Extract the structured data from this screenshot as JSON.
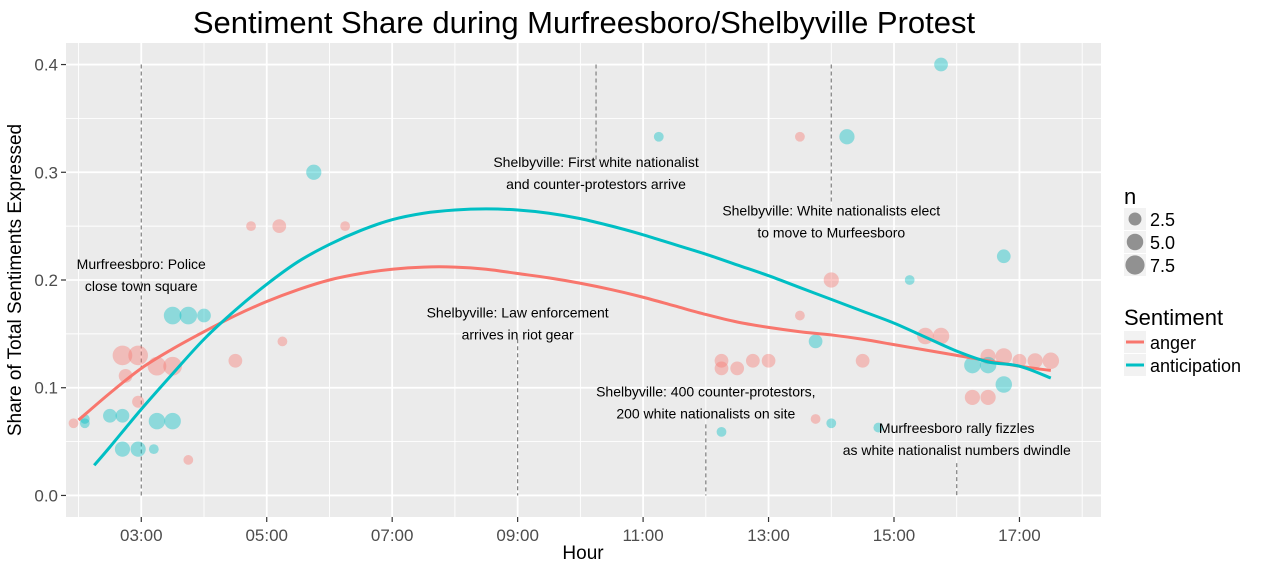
{
  "chart_data": {
    "type": "scatter",
    "title": "Sentiment Share during Murfreesboro/Shelbyville Protest",
    "xlabel": "Hour",
    "ylabel": "Share of Total Sentiments Expressed",
    "xlim": [
      1.8,
      18.3
    ],
    "ylim": [
      -0.02,
      0.42
    ],
    "x_ticks": [
      3,
      5,
      7,
      9,
      11,
      13,
      15,
      17
    ],
    "x_tick_labels": [
      "03:00",
      "05:00",
      "07:00",
      "09:00",
      "11:00",
      "13:00",
      "15:00",
      "17:00"
    ],
    "y_ticks": [
      0.0,
      0.1,
      0.2,
      0.3,
      0.4
    ],
    "y_tick_labels": [
      "0.0",
      "0.1",
      "0.2",
      "0.3",
      "0.4"
    ],
    "grid": true,
    "colors": {
      "anger": "#F8766D",
      "anticipation": "#00BFC4",
      "panel": "#EBEBEB",
      "grid": "#FFFFFF",
      "event_line": "#7f7f7f"
    },
    "size_legend": {
      "title": "n",
      "entries": [
        {
          "label": "2.5",
          "n": 2.5
        },
        {
          "label": "5.0",
          "n": 5.0
        },
        {
          "label": "7.5",
          "n": 7.5
        }
      ]
    },
    "color_legend": {
      "title": "Sentiment",
      "entries": [
        {
          "label": "anger",
          "series": "anger"
        },
        {
          "label": "anticipation",
          "series": "anticipation"
        }
      ]
    },
    "legend_position": "right",
    "series": [
      {
        "name": "anger",
        "points": [
          {
            "x": 1.92,
            "y": 0.067,
            "n": 1
          },
          {
            "x": 2.7,
            "y": 0.13,
            "n": 8
          },
          {
            "x": 2.95,
            "y": 0.13,
            "n": 8
          },
          {
            "x": 2.75,
            "y": 0.111,
            "n": 3
          },
          {
            "x": 2.95,
            "y": 0.087,
            "n": 2
          },
          {
            "x": 3.25,
            "y": 0.12,
            "n": 7
          },
          {
            "x": 3.5,
            "y": 0.12,
            "n": 7
          },
          {
            "x": 3.75,
            "y": 0.033,
            "n": 1
          },
          {
            "x": 4.5,
            "y": 0.125,
            "n": 3
          },
          {
            "x": 4.75,
            "y": 0.25,
            "n": 1
          },
          {
            "x": 5.2,
            "y": 0.25,
            "n": 3
          },
          {
            "x": 5.25,
            "y": 0.143,
            "n": 1
          },
          {
            "x": 6.25,
            "y": 0.25,
            "n": 1
          },
          {
            "x": 12.25,
            "y": 0.125,
            "n": 3
          },
          {
            "x": 12.25,
            "y": 0.118,
            "n": 3
          },
          {
            "x": 12.5,
            "y": 0.118,
            "n": 3
          },
          {
            "x": 12.75,
            "y": 0.125,
            "n": 3
          },
          {
            "x": 13.0,
            "y": 0.125,
            "n": 3
          },
          {
            "x": 13.5,
            "y": 0.333,
            "n": 1
          },
          {
            "x": 13.5,
            "y": 0.167,
            "n": 1
          },
          {
            "x": 13.75,
            "y": 0.071,
            "n": 1
          },
          {
            "x": 14.0,
            "y": 0.2,
            "n": 4
          },
          {
            "x": 14.5,
            "y": 0.125,
            "n": 3
          },
          {
            "x": 15.5,
            "y": 0.148,
            "n": 5
          },
          {
            "x": 15.75,
            "y": 0.148,
            "n": 5
          },
          {
            "x": 16.25,
            "y": 0.091,
            "n": 4
          },
          {
            "x": 16.5,
            "y": 0.091,
            "n": 4
          },
          {
            "x": 16.5,
            "y": 0.129,
            "n": 4
          },
          {
            "x": 16.75,
            "y": 0.129,
            "n": 5
          },
          {
            "x": 17.0,
            "y": 0.125,
            "n": 3
          },
          {
            "x": 17.25,
            "y": 0.125,
            "n": 4
          },
          {
            "x": 17.5,
            "y": 0.125,
            "n": 5
          }
        ],
        "smooth": [
          {
            "x": 2.0,
            "y": 0.07
          },
          {
            "x": 2.5,
            "y": 0.095
          },
          {
            "x": 3.0,
            "y": 0.118
          },
          {
            "x": 3.5,
            "y": 0.136
          },
          {
            "x": 4.0,
            "y": 0.152
          },
          {
            "x": 4.5,
            "y": 0.167
          },
          {
            "x": 5.0,
            "y": 0.18
          },
          {
            "x": 5.5,
            "y": 0.191
          },
          {
            "x": 6.0,
            "y": 0.2
          },
          {
            "x": 6.5,
            "y": 0.206
          },
          {
            "x": 7.0,
            "y": 0.21
          },
          {
            "x": 7.5,
            "y": 0.212
          },
          {
            "x": 8.0,
            "y": 0.212
          },
          {
            "x": 8.5,
            "y": 0.21
          },
          {
            "x": 9.0,
            "y": 0.206
          },
          {
            "x": 9.5,
            "y": 0.202
          },
          {
            "x": 10.0,
            "y": 0.197
          },
          {
            "x": 10.5,
            "y": 0.191
          },
          {
            "x": 11.0,
            "y": 0.184
          },
          {
            "x": 11.5,
            "y": 0.176
          },
          {
            "x": 12.0,
            "y": 0.168
          },
          {
            "x": 12.5,
            "y": 0.161
          },
          {
            "x": 13.0,
            "y": 0.156
          },
          {
            "x": 13.5,
            "y": 0.152
          },
          {
            "x": 14.0,
            "y": 0.149
          },
          {
            "x": 14.5,
            "y": 0.145
          },
          {
            "x": 15.0,
            "y": 0.14
          },
          {
            "x": 15.5,
            "y": 0.135
          },
          {
            "x": 16.0,
            "y": 0.13
          },
          {
            "x": 16.5,
            "y": 0.125
          },
          {
            "x": 17.0,
            "y": 0.12
          },
          {
            "x": 17.5,
            "y": 0.116
          }
        ]
      },
      {
        "name": "anticipation",
        "points": [
          {
            "x": 2.1,
            "y": 0.071,
            "n": 1
          },
          {
            "x": 2.1,
            "y": 0.067,
            "n": 1
          },
          {
            "x": 2.5,
            "y": 0.074,
            "n": 3
          },
          {
            "x": 2.7,
            "y": 0.074,
            "n": 3
          },
          {
            "x": 2.7,
            "y": 0.043,
            "n": 4
          },
          {
            "x": 2.95,
            "y": 0.043,
            "n": 4
          },
          {
            "x": 3.2,
            "y": 0.043,
            "n": 1
          },
          {
            "x": 3.25,
            "y": 0.069,
            "n": 5
          },
          {
            "x": 3.5,
            "y": 0.069,
            "n": 5
          },
          {
            "x": 3.5,
            "y": 0.167,
            "n": 6
          },
          {
            "x": 3.75,
            "y": 0.167,
            "n": 6
          },
          {
            "x": 4.0,
            "y": 0.167,
            "n": 3
          },
          {
            "x": 5.75,
            "y": 0.3,
            "n": 4
          },
          {
            "x": 11.25,
            "y": 0.333,
            "n": 1
          },
          {
            "x": 12.25,
            "y": 0.059,
            "n": 1
          },
          {
            "x": 13.75,
            "y": 0.143,
            "n": 3
          },
          {
            "x": 14.0,
            "y": 0.067,
            "n": 1
          },
          {
            "x": 14.25,
            "y": 0.333,
            "n": 4
          },
          {
            "x": 14.75,
            "y": 0.063,
            "n": 1
          },
          {
            "x": 15.25,
            "y": 0.2,
            "n": 1
          },
          {
            "x": 15.75,
            "y": 0.4,
            "n": 3
          },
          {
            "x": 16.25,
            "y": 0.121,
            "n": 5
          },
          {
            "x": 16.5,
            "y": 0.121,
            "n": 5
          },
          {
            "x": 16.75,
            "y": 0.222,
            "n": 3
          },
          {
            "x": 16.75,
            "y": 0.103,
            "n": 5
          }
        ],
        "smooth": [
          {
            "x": 2.25,
            "y": 0.028
          },
          {
            "x": 2.5,
            "y": 0.045
          },
          {
            "x": 3.0,
            "y": 0.08
          },
          {
            "x": 3.5,
            "y": 0.113
          },
          {
            "x": 4.0,
            "y": 0.145
          },
          {
            "x": 4.5,
            "y": 0.172
          },
          {
            "x": 5.0,
            "y": 0.196
          },
          {
            "x": 5.5,
            "y": 0.217
          },
          {
            "x": 6.0,
            "y": 0.233
          },
          {
            "x": 6.5,
            "y": 0.246
          },
          {
            "x": 7.0,
            "y": 0.256
          },
          {
            "x": 7.5,
            "y": 0.262
          },
          {
            "x": 8.0,
            "y": 0.265
          },
          {
            "x": 8.5,
            "y": 0.266
          },
          {
            "x": 9.0,
            "y": 0.265
          },
          {
            "x": 9.5,
            "y": 0.262
          },
          {
            "x": 10.0,
            "y": 0.257
          },
          {
            "x": 10.5,
            "y": 0.25
          },
          {
            "x": 11.0,
            "y": 0.242
          },
          {
            "x": 11.5,
            "y": 0.233
          },
          {
            "x": 12.0,
            "y": 0.224
          },
          {
            "x": 12.5,
            "y": 0.214
          },
          {
            "x": 13.0,
            "y": 0.204
          },
          {
            "x": 13.5,
            "y": 0.193
          },
          {
            "x": 14.0,
            "y": 0.182
          },
          {
            "x": 14.5,
            "y": 0.171
          },
          {
            "x": 15.0,
            "y": 0.16
          },
          {
            "x": 15.5,
            "y": 0.147
          },
          {
            "x": 16.0,
            "y": 0.134
          },
          {
            "x": 16.5,
            "y": 0.124
          },
          {
            "x": 17.0,
            "y": 0.12
          },
          {
            "x": 17.5,
            "y": 0.109
          }
        ]
      }
    ],
    "events": [
      {
        "x": 3.0,
        "y_top": 0.4,
        "y_bottom": 0.0,
        "label_x": 3.0,
        "label_y": 0.21,
        "lines": [
          "Murfreesboro: Police",
          "close town square"
        ]
      },
      {
        "x": 9.0,
        "y_top": 0.145,
        "y_bottom": 0.0,
        "label_x": 9.0,
        "label_y": 0.165,
        "lines": [
          "Shelbyville: Law enforcement",
          "arrives in riot gear"
        ]
      },
      {
        "x": 10.25,
        "y_top": 0.4,
        "y_bottom": 0.31,
        "label_x": 10.25,
        "label_y": 0.305,
        "lines": [
          "Shelbyville: First white nationalist",
          "and counter-protestors arrive"
        ]
      },
      {
        "x": 12.0,
        "y_top": 0.066,
        "y_bottom": 0.0,
        "label_x": 12.0,
        "label_y": 0.092,
        "lines": [
          "Shelbyville: 400 counter-protestors,",
          "200 white nationalists on site"
        ]
      },
      {
        "x": 14.0,
        "y_top": 0.4,
        "y_bottom": 0.27,
        "label_x": 14.0,
        "label_y": 0.26,
        "lines": [
          "Shelbyville: White nationalists elect",
          "to move to Murfeesboro"
        ]
      },
      {
        "x": 16.0,
        "y_top": 0.03,
        "y_bottom": 0.0,
        "label_x": 16.0,
        "label_y": 0.058,
        "lines": [
          "Murfreesboro rally fizzles",
          "as white nationalist numbers dwindle"
        ]
      }
    ]
  }
}
